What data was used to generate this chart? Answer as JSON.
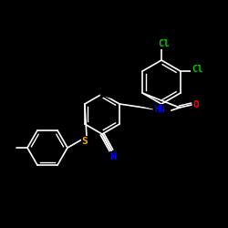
{
  "background": "#000000",
  "bond_color": "#FFFFFF",
  "atom_colors": {
    "Cl": "#00CC00",
    "N": "#0000FF",
    "O": "#FF0000",
    "S": "#FFA500",
    "C": "#FFFFFF"
  },
  "font_size": 7,
  "bond_width": 1.2
}
